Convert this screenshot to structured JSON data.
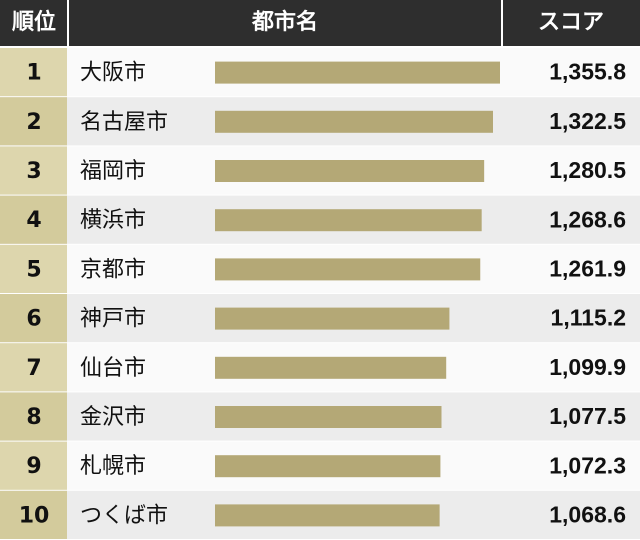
{
  "chart_data": {
    "type": "bar",
    "orientation": "horizontal",
    "header": [
      "順位",
      "都市名",
      "スコア"
    ],
    "ranks": [
      1,
      2,
      3,
      4,
      5,
      6,
      7,
      8,
      9,
      10
    ],
    "categories": [
      "大阪市",
      "名古屋市",
      "福岡市",
      "横浜市",
      "京都市",
      "神戸市",
      "仙台市",
      "金沢市",
      "札幌市",
      "つくば市"
    ],
    "values": [
      1355.8,
      1322.5,
      1280.5,
      1268.6,
      1261.9,
      1115.2,
      1099.9,
      1077.5,
      1072.3,
      1068.6
    ],
    "value_labels": [
      "1,355.8",
      "1,322.5",
      "1,280.5",
      "1,268.6",
      "1,261.9",
      "1,115.2",
      "1,099.9",
      "1,077.5",
      "1,072.3",
      "1,068.6"
    ],
    "color": "#b4a876"
  }
}
